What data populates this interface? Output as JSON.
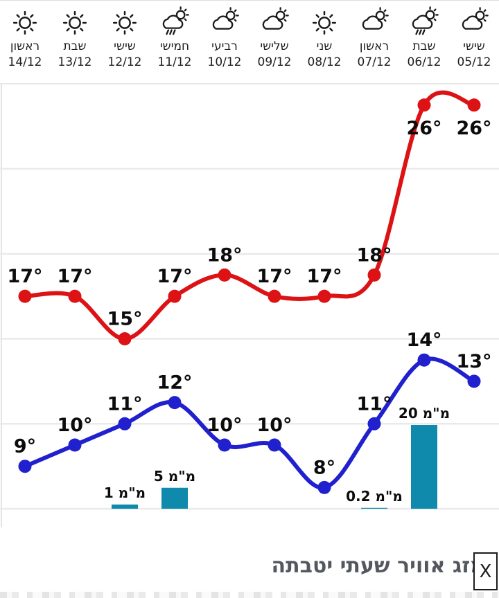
{
  "header": {
    "columns": [
      {
        "day": "ראשון",
        "date": "14/12",
        "icon": "sun"
      },
      {
        "day": "שבת",
        "date": "13/12",
        "icon": "sun"
      },
      {
        "day": "שישי",
        "date": "12/12",
        "icon": "sun"
      },
      {
        "day": "חמישי",
        "date": "11/12",
        "icon": "rain-sun"
      },
      {
        "day": "רביעי",
        "date": "10/12",
        "icon": "cloud-sun"
      },
      {
        "day": "שלישי",
        "date": "09/12",
        "icon": "cloud-sun"
      },
      {
        "day": "שני",
        "date": "08/12",
        "icon": "sun"
      },
      {
        "day": "ראשון",
        "date": "07/12",
        "icon": "cloud-sun"
      },
      {
        "day": "שבת",
        "date": "06/12",
        "icon": "rain-sun"
      },
      {
        "day": "שישי",
        "date": "05/12",
        "icon": "cloud-sun"
      }
    ]
  },
  "chart_data": {
    "type": "line",
    "categories": [
      "14/12",
      "13/12",
      "12/12",
      "11/12",
      "10/12",
      "09/12",
      "08/12",
      "07/12",
      "06/12",
      "05/12"
    ],
    "series": [
      {
        "name": "high-temp",
        "type": "line",
        "color": "#dc1215",
        "unit": "°",
        "values": [
          17,
          17,
          15,
          17,
          18,
          17,
          17,
          18,
          26,
          26
        ]
      },
      {
        "name": "low-temp",
        "type": "line",
        "color": "#2020cf",
        "unit": "°",
        "values": [
          9,
          10,
          11,
          12,
          10,
          10,
          8,
          11,
          14,
          13
        ]
      }
    ],
    "bars": {
      "name": "precipitation",
      "type": "bar",
      "color": "#0f8aad",
      "unit": "מ\"מ",
      "values": [
        null,
        null,
        1,
        5,
        null,
        null,
        null,
        0.2,
        20,
        null
      ]
    },
    "ylim": [
      6,
      28
    ],
    "grid": true,
    "grid_step_deg": 4,
    "legend": "none",
    "label_color": "#0c0c0c",
    "grid_color": "#eaeaea"
  },
  "footer": {
    "title": "מזג אוויר שעתי יטבתה",
    "close_label": "X"
  }
}
